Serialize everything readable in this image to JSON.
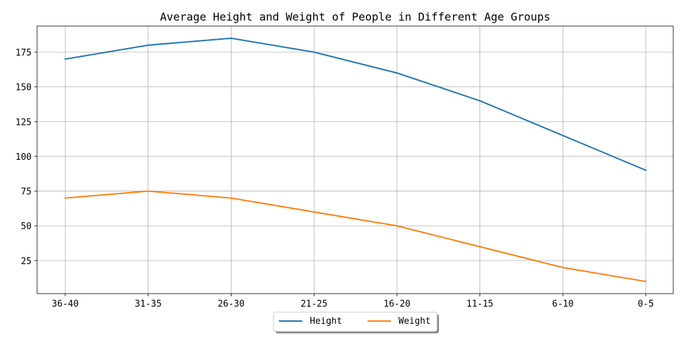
{
  "chart_data": {
    "type": "line",
    "title": "Average Height and Weight of People in Different Age Groups",
    "xlabel": "",
    "ylabel": "",
    "categories": [
      "36-40",
      "31-35",
      "26-30",
      "21-25",
      "16-20",
      "11-15",
      "6-10",
      "0-5"
    ],
    "series": [
      {
        "name": "Height",
        "values": [
          170,
          180,
          185,
          175,
          160,
          140,
          115,
          90
        ],
        "color": "#1f77b4"
      },
      {
        "name": "Weight",
        "values": [
          70,
          75,
          70,
          60,
          50,
          35,
          20,
          10
        ],
        "color": "#ff7f0e"
      }
    ],
    "y_ticks": [
      25,
      50,
      75,
      100,
      125,
      150,
      175
    ],
    "ylim": [
      1.25,
      193.75
    ],
    "grid": true,
    "legend_position": "bottom-center"
  }
}
